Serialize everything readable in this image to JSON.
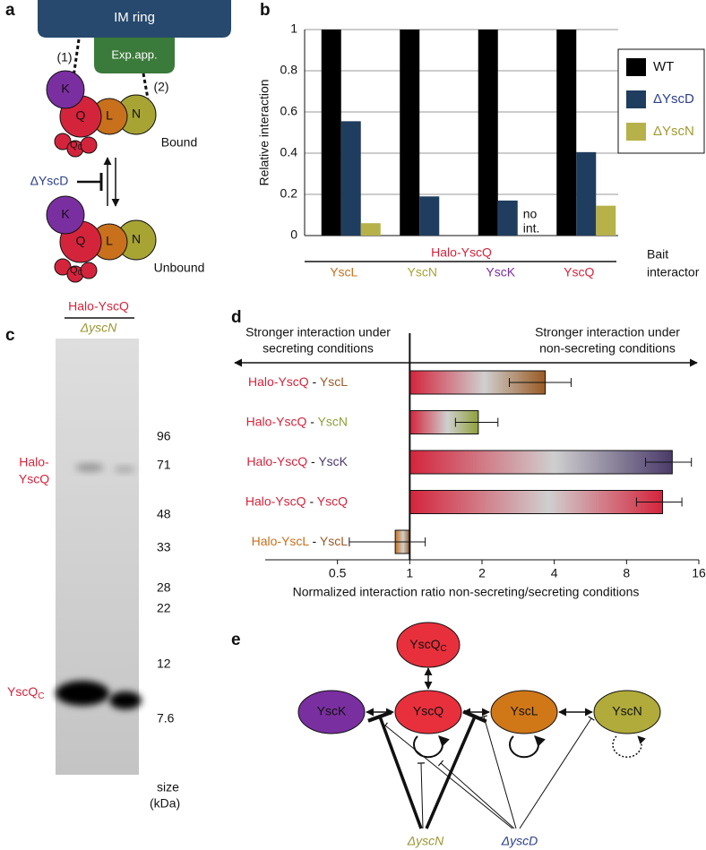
{
  "panel_a": {
    "label": "a",
    "im_ring": "IM ring",
    "export_apparatus": "Exp.app.",
    "links": [
      "(1)",
      "(2)"
    ],
    "proteins": [
      "K",
      "Q",
      "L",
      "N"
    ],
    "qc": {
      "text": "Q",
      "sub": "C"
    },
    "states": [
      "Bound",
      "Unbound"
    ],
    "mutant": "ΔYscD"
  },
  "chart_data": [
    {
      "type": "bar",
      "label": "b",
      "y_label": "Relative interaction",
      "categories": [
        "YscL",
        "YscN",
        "YscK",
        "YscQ"
      ],
      "category_colors": [
        "#c8701c",
        "#a8a434",
        "#7a2fa0",
        "#d4243c"
      ],
      "series": [
        {
          "name": "WT",
          "color": "#000000",
          "values": [
            1,
            1,
            1,
            1
          ]
        },
        {
          "name": "ΔYscD",
          "color": "#1f3d5e",
          "values": [
            0.555,
            0.19,
            0.17,
            0.405
          ]
        },
        {
          "name": "ΔYscN",
          "color": "#b7b14a",
          "values": [
            0.06,
            null,
            null,
            0.145
          ]
        }
      ],
      "annotation": [
        "no",
        "int."
      ],
      "group_label": "Halo-YscQ",
      "group_label_color": "#d4243c",
      "row_labels": [
        "Bait",
        "interactor"
      ],
      "ylim": [
        0,
        1
      ],
      "yticks": [
        0,
        0.2,
        0.4,
        0.6,
        0.8,
        1
      ],
      "grid": true,
      "legend": "right"
    },
    {
      "type": "barh",
      "label": "d",
      "headers": {
        "left": [
          "Stronger interaction under",
          "secreting conditions"
        ],
        "right": [
          "Stronger interaction under",
          "non-secreting conditions"
        ]
      },
      "categories": [
        {
          "bait": "Halo-YscQ",
          "prey": "YscL"
        },
        {
          "bait": "Halo-YscQ",
          "prey": "YscN"
        },
        {
          "bait": "Halo-YscQ",
          "prey": "YscK"
        },
        {
          "bait": "Halo-YscQ",
          "prey": "YscQ"
        },
        {
          "bait": "Halo-YscL",
          "prey": "YscL"
        }
      ],
      "separator": " - ",
      "bait_colors": [
        "#d4243c",
        "#d4243c",
        "#d4243c",
        "#d4243c",
        "#c8701c"
      ],
      "prey_colors": [
        "#9a5a22",
        "#8fa03a",
        "#4a3a6a",
        "#d4243c",
        "#9a5a22"
      ],
      "values": [
        3.67,
        1.93,
        12.4,
        11.3,
        0.87
      ],
      "error_low": [
        2.6,
        1.55,
        9.6,
        8.8,
        0.56
      ],
      "error_high": [
        4.7,
        2.33,
        14.9,
        13.6,
        1.16
      ],
      "baseline": 1,
      "xscale": "log2",
      "xlim": [
        0.25,
        16
      ],
      "xticks": [
        0.5,
        1,
        2,
        4,
        8,
        16
      ],
      "x_label": "Normalized interaction ratio non-secreting/secreting conditions"
    }
  ],
  "panel_c": {
    "label": "c",
    "header": "Halo-YscQ",
    "strain": "ΔyscN",
    "markers": [
      "96",
      "71",
      "48",
      "33",
      "28",
      "22",
      "12",
      "7.6"
    ],
    "size_label": [
      "size",
      "(kDa)"
    ],
    "halo_label": [
      "Halo-",
      "YscQ"
    ],
    "qc_label": {
      "text": "YscQ",
      "sub": "C"
    }
  },
  "panel_e": {
    "label": "e",
    "qc": {
      "text": "YscQ",
      "sub": "C"
    },
    "nodes": [
      "YscK",
      "YscQ",
      "YscL",
      "YscN"
    ],
    "mutants": [
      "ΔyscN",
      "ΔyscD"
    ]
  }
}
